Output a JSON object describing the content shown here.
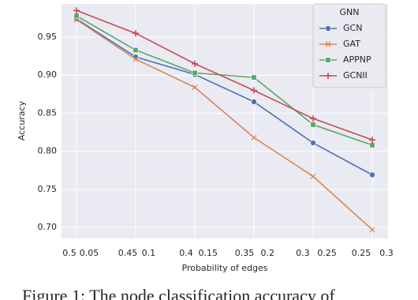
{
  "chart_data": {
    "type": "line",
    "x_label": "Probability of edges",
    "y_label": "Accuracy",
    "categories": [
      null,
      null,
      null,
      null,
      null,
      null
    ],
    "xlim": [
      0.5068,
      0.227
    ],
    "xticks": [
      0.5,
      0.45,
      0.4,
      0.35,
      0.3,
      0.25
    ],
    "x2lim": [
      0.0268,
      0.3013
    ],
    "x2ticks": [
      0.05,
      0.1,
      0.15,
      0.2,
      0.25,
      0.3
    ],
    "ylim": [
      0.6855,
      0.9936
    ],
    "yticks": [
      {
        "value": 0.7,
        "label": "0.70"
      },
      0.75,
      {
        "value": 0.8,
        "label": "0.80"
      },
      0.85,
      {
        "value": 0.9,
        "label": "0.90"
      },
      0.95
    ],
    "grid": true,
    "legend_title": "GNN",
    "legend_position": "upper right",
    "series": [
      {
        "name": "GCN",
        "color": "#4c72b0",
        "marker": "circle",
        "values": [
          0.974,
          0.924,
          0.901,
          0.865,
          0.811,
          0.769
        ]
      },
      {
        "name": "GAT",
        "color": "#dd8452",
        "marker": "x",
        "values": [
          0.973,
          0.921,
          0.884,
          0.818,
          0.767,
          0.697
        ]
      },
      {
        "name": "APPNP",
        "color": "#55a868",
        "marker": "square",
        "values": [
          0.978,
          0.933,
          0.903,
          0.897,
          0.835,
          0.808
        ]
      },
      {
        "name": "GCNII",
        "color": "#c44e52",
        "marker": "plus",
        "values": [
          0.985,
          0.955,
          0.915,
          0.88,
          0.843,
          0.815
        ]
      }
    ]
  },
  "caption": "Figure 1: The node classification accuracy of"
}
